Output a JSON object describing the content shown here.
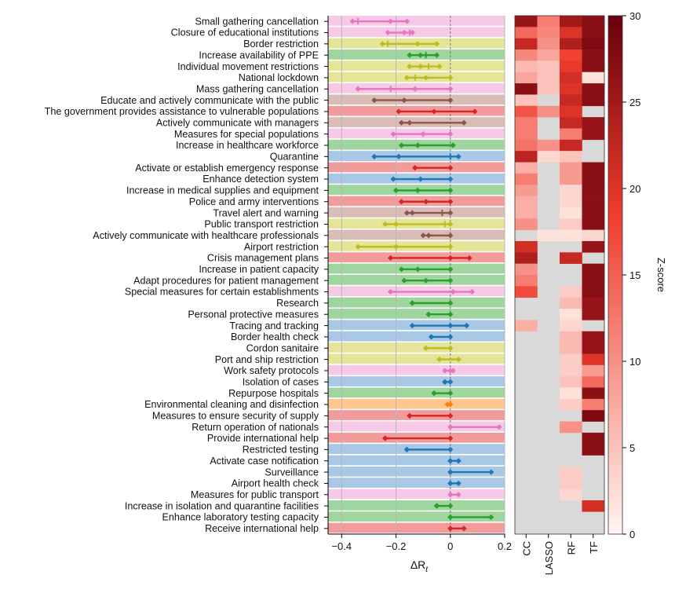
{
  "chart_data": [
    {
      "type": "interval",
      "xlabel": "ΔR_t",
      "xlim": [
        -0.45,
        0.2
      ],
      "xticks": [
        "−0.4",
        "−0.2",
        "0",
        "0.2"
      ],
      "xtick_values": [
        -0.4,
        -0.2,
        0,
        0.2
      ],
      "grid": "vertical",
      "category_colors": {
        "pink": "#e377c2",
        "olive": "#bcbd22",
        "green": "#2ca02c",
        "brown": "#8c564b",
        "red": "#d62728",
        "blue": "#1f77b4",
        "orange": "#ff7f0e"
      },
      "rows": [
        {
          "label": "Small gathering cancellation",
          "cat": "pink",
          "lo": -0.36,
          "mid": -0.22,
          "hi": -0.16,
          "ticks": [
            -0.34
          ]
        },
        {
          "label": "Closure of educational institutions",
          "cat": "pink",
          "lo": -0.23,
          "mid": -0.17,
          "hi": -0.14,
          "ticks": [
            -0.15
          ]
        },
        {
          "label": "Border restriction",
          "cat": "olive",
          "lo": -0.25,
          "mid": -0.12,
          "hi": -0.05,
          "ticks": [
            -0.23
          ]
        },
        {
          "label": "Increase availability of PPE",
          "cat": "green",
          "lo": -0.15,
          "mid": -0.11,
          "hi": -0.05,
          "ticks": [
            -0.09
          ]
        },
        {
          "label": "Individual movement restrictions",
          "cat": "olive",
          "lo": -0.15,
          "mid": -0.11,
          "hi": -0.04,
          "ticks": [
            -0.08
          ]
        },
        {
          "label": "National lockdown",
          "cat": "olive",
          "lo": -0.16,
          "mid": -0.09,
          "hi": 0.0,
          "ticks": [
            -0.13
          ]
        },
        {
          "label": "Mass gathering cancellation",
          "cat": "pink",
          "lo": -0.34,
          "mid": -0.13,
          "hi": 0.0,
          "ticks": [
            -0.22
          ]
        },
        {
          "label": "Educate and actively communicate with the public",
          "cat": "brown",
          "lo": -0.28,
          "mid": -0.17,
          "hi": 0.0,
          "ticks": []
        },
        {
          "label": "The government provides assistance to vulnerable populations",
          "cat": "red",
          "lo": -0.19,
          "mid": -0.06,
          "hi": 0.09,
          "ticks": []
        },
        {
          "label": "Actively communicate with managers",
          "cat": "brown",
          "lo": -0.18,
          "mid": -0.15,
          "hi": 0.05,
          "ticks": []
        },
        {
          "label": "Measures for special populations",
          "cat": "pink",
          "lo": -0.21,
          "mid": -0.1,
          "hi": 0.0,
          "ticks": []
        },
        {
          "label": "Increase in healthcare workforce",
          "cat": "green",
          "lo": -0.18,
          "mid": -0.12,
          "hi": 0.01,
          "ticks": []
        },
        {
          "label": "Quarantine",
          "cat": "blue",
          "lo": -0.28,
          "mid": -0.19,
          "hi": 0.03,
          "ticks": [
            0.0
          ]
        },
        {
          "label": "Activate or establish emergency response",
          "cat": "red",
          "lo": -0.13,
          "mid": -0.13,
          "hi": 0.0,
          "ticks": []
        },
        {
          "label": "Enhance detection system",
          "cat": "blue",
          "lo": -0.21,
          "mid": -0.11,
          "hi": 0.0,
          "ticks": []
        },
        {
          "label": "Increase in medical supplies and equipment",
          "cat": "green",
          "lo": -0.2,
          "mid": -0.12,
          "hi": 0.0,
          "ticks": []
        },
        {
          "label": "Police and army interventions",
          "cat": "red",
          "lo": -0.18,
          "mid": -0.09,
          "hi": 0.0,
          "ticks": []
        },
        {
          "label": "Travel alert and warning",
          "cat": "brown",
          "lo": -0.16,
          "mid": -0.14,
          "hi": 0.0,
          "ticks": [
            -0.03
          ]
        },
        {
          "label": "Public transport restriction",
          "cat": "olive",
          "lo": -0.24,
          "mid": -0.2,
          "hi": 0.0,
          "ticks": [
            -0.02
          ]
        },
        {
          "label": "Actively communicate with healthcare professionals",
          "cat": "brown",
          "lo": -0.1,
          "mid": -0.08,
          "hi": 0.0,
          "ticks": []
        },
        {
          "label": "Airport restriction",
          "cat": "olive",
          "lo": -0.34,
          "mid": -0.2,
          "hi": 0.0,
          "ticks": []
        },
        {
          "label": "Crisis management plans",
          "cat": "red",
          "lo": -0.22,
          "mid": 0.0,
          "hi": 0.07,
          "ticks": []
        },
        {
          "label": "Increase in patient capacity",
          "cat": "green",
          "lo": -0.18,
          "mid": -0.12,
          "hi": 0.0,
          "ticks": []
        },
        {
          "label": "Adapt procedures for patient management",
          "cat": "green",
          "lo": -0.17,
          "mid": -0.09,
          "hi": 0.0,
          "ticks": []
        },
        {
          "label": "Special measures for certain establishments",
          "cat": "pink",
          "lo": -0.22,
          "mid": 0.01,
          "hi": 0.08,
          "ticks": []
        },
        {
          "label": "Research",
          "cat": "green",
          "lo": -0.14,
          "mid": -0.14,
          "hi": 0.0,
          "ticks": []
        },
        {
          "label": "Personal protective measures",
          "cat": "green",
          "lo": -0.08,
          "mid": -0.08,
          "hi": 0.0,
          "ticks": []
        },
        {
          "label": "Tracing and tracking",
          "cat": "blue",
          "lo": -0.14,
          "mid": 0.0,
          "hi": 0.06,
          "ticks": []
        },
        {
          "label": "Border health check",
          "cat": "blue",
          "lo": -0.07,
          "mid": -0.07,
          "hi": 0.0,
          "ticks": []
        },
        {
          "label": "Cordon sanitaire",
          "cat": "olive",
          "lo": -0.09,
          "mid": -0.09,
          "hi": 0.0,
          "ticks": []
        },
        {
          "label": "Port and ship restriction",
          "cat": "olive",
          "lo": -0.04,
          "mid": -0.04,
          "hi": 0.03,
          "ticks": []
        },
        {
          "label": "Work safety protocols",
          "cat": "pink",
          "lo": -0.02,
          "mid": 0.0,
          "hi": 0.01,
          "ticks": []
        },
        {
          "label": "Isolation of cases",
          "cat": "blue",
          "lo": -0.02,
          "mid": -0.02,
          "hi": 0.0,
          "ticks": []
        },
        {
          "label": "Repurpose hospitals",
          "cat": "green",
          "lo": -0.06,
          "mid": -0.06,
          "hi": 0.0,
          "ticks": []
        },
        {
          "label": "Environmental cleaning and disinfection",
          "cat": "orange",
          "lo": -0.01,
          "mid": -0.01,
          "hi": 0.0,
          "ticks": []
        },
        {
          "label": "Measures to ensure security of supply",
          "cat": "red",
          "lo": -0.15,
          "mid": -0.15,
          "hi": 0.0,
          "ticks": []
        },
        {
          "label": "Return operation of nationals",
          "cat": "pink",
          "lo": 0.0,
          "mid": 0.0,
          "hi": 0.18,
          "ticks": []
        },
        {
          "label": "Provide international help",
          "cat": "red",
          "lo": -0.24,
          "mid": -0.24,
          "hi": 0.0,
          "ticks": []
        },
        {
          "label": "Restricted testing",
          "cat": "blue",
          "lo": -0.16,
          "mid": -0.16,
          "hi": 0.0,
          "ticks": []
        },
        {
          "label": "Activate case notification",
          "cat": "blue",
          "lo": 0.0,
          "mid": 0.0,
          "hi": 0.03,
          "ticks": []
        },
        {
          "label": "Surveillance",
          "cat": "blue",
          "lo": 0.0,
          "mid": 0.0,
          "hi": 0.15,
          "ticks": []
        },
        {
          "label": "Airport health check",
          "cat": "blue",
          "lo": 0.0,
          "mid": 0.0,
          "hi": 0.03,
          "ticks": []
        },
        {
          "label": "Measures for public transport",
          "cat": "pink",
          "lo": 0.0,
          "mid": 0.0,
          "hi": 0.03,
          "ticks": []
        },
        {
          "label": "Increase in isolation and quarantine facilities",
          "cat": "green",
          "lo": -0.05,
          "mid": -0.05,
          "hi": 0.0,
          "ticks": []
        },
        {
          "label": "Enhance laboratory testing capacity",
          "cat": "green",
          "lo": 0.0,
          "mid": 0.0,
          "hi": 0.15,
          "ticks": []
        },
        {
          "label": "Receive international help",
          "cat": "red",
          "lo": 0.0,
          "mid": 0.0,
          "hi": 0.05,
          "ticks": []
        }
      ]
    },
    {
      "type": "heatmap",
      "columns": [
        "CC",
        "LASSO",
        "RF",
        "TF"
      ],
      "null_color": "#d9d9d9",
      "values": [
        [
          26,
          12,
          25,
          27
        ],
        [
          14,
          11,
          20,
          27
        ],
        [
          22,
          10,
          24,
          28
        ],
        [
          11,
          8,
          18,
          27
        ],
        [
          6,
          5,
          19,
          27
        ],
        [
          8,
          5,
          21,
          2
        ],
        [
          27,
          5,
          20,
          27
        ],
        [
          5,
          null,
          22,
          27
        ],
        [
          16,
          10,
          20,
          null
        ],
        [
          12,
          null,
          22,
          26
        ],
        [
          12,
          null,
          12,
          26
        ],
        [
          13,
          10,
          22,
          null
        ],
        [
          23,
          3,
          5,
          null
        ],
        [
          7,
          null,
          9,
          27
        ],
        [
          12,
          null,
          9,
          27
        ],
        [
          9,
          null,
          3,
          27
        ],
        [
          7,
          null,
          3,
          27
        ],
        [
          7,
          null,
          2,
          27
        ],
        [
          10,
          null,
          4,
          27
        ],
        [
          null,
          2,
          2,
          3
        ],
        [
          21,
          null,
          null,
          26
        ],
        [
          24,
          null,
          22,
          null
        ],
        [
          10,
          null,
          null,
          27
        ],
        [
          12,
          null,
          null,
          27
        ],
        [
          17,
          null,
          4,
          27
        ],
        [
          null,
          null,
          6,
          26
        ],
        [
          null,
          null,
          2,
          26
        ],
        [
          7,
          null,
          3,
          null
        ],
        [
          null,
          null,
          6,
          26
        ],
        [
          null,
          null,
          6,
          26
        ],
        [
          null,
          null,
          4,
          20
        ],
        [
          null,
          null,
          4,
          9
        ],
        [
          null,
          null,
          5,
          14
        ],
        [
          null,
          null,
          2,
          27
        ],
        [
          null,
          null,
          4,
          12
        ],
        [
          null,
          null,
          null,
          28
        ],
        [
          null,
          null,
          10,
          null
        ],
        [
          null,
          null,
          null,
          27
        ],
        [
          null,
          null,
          null,
          27
        ],
        [
          null,
          null,
          null,
          null
        ],
        [
          null,
          null,
          4,
          null
        ],
        [
          null,
          null,
          4,
          null
        ],
        [
          null,
          null,
          3,
          null
        ],
        [
          null,
          null,
          null,
          21
        ],
        [
          null,
          null,
          null,
          null
        ],
        [
          null,
          null,
          null,
          null
        ]
      ],
      "colorbar": {
        "label": "Z-score",
        "range": [
          0,
          30
        ],
        "ticks": [
          "0",
          "5",
          "10",
          "15",
          "20",
          "25",
          "30"
        ],
        "tick_values": [
          0,
          5,
          10,
          15,
          20,
          25,
          30
        ],
        "color_low": "#fff5f0",
        "color_mid": "#ef3b2c",
        "color_high": "#67000d"
      }
    }
  ]
}
